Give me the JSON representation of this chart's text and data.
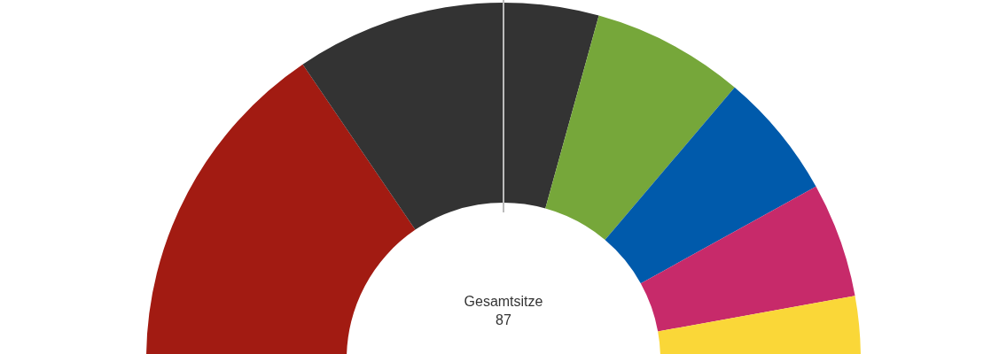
{
  "chart_data": {
    "type": "donut",
    "categories": [
      null,
      null,
      null,
      null,
      null,
      null
    ],
    "values": [
      31.0,
      27.6,
      13.8,
      11.5,
      10.4,
      5.7
    ],
    "colors": [
      "#a21b12",
      "#333333",
      "#76a73a",
      "#005aab",
      "#c72a6a",
      "#fad738"
    ],
    "annotations": [
      "Gesamtsitze",
      "87"
    ]
  }
}
